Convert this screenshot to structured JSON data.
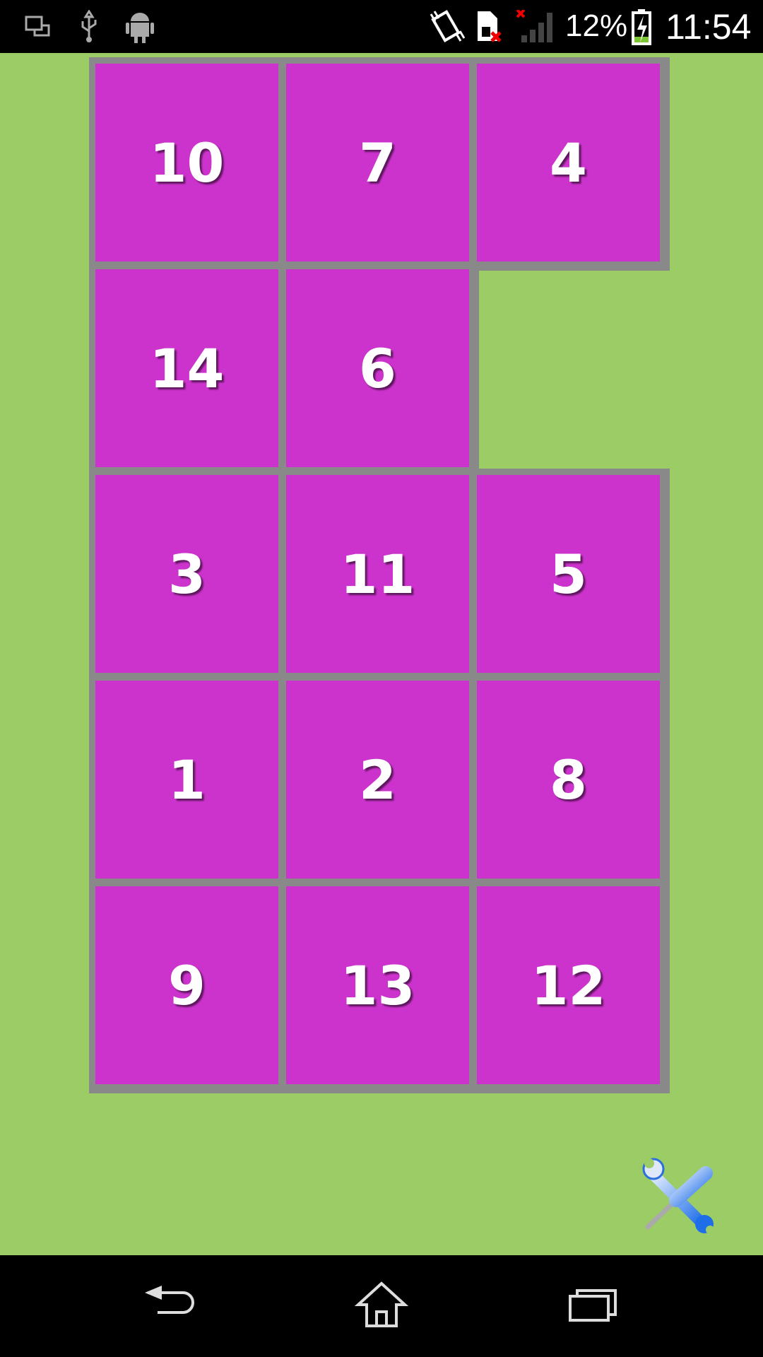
{
  "status_bar": {
    "left_icons": [
      "screen-mirror-icon",
      "usb-icon",
      "android-icon"
    ],
    "right_icons": [
      "vibrate-icon",
      "sim-missing-icon",
      "signal-none-icon",
      "battery-charging-icon"
    ],
    "battery_percent": "12%",
    "battery_level": 0.12,
    "time": "11:54"
  },
  "board": {
    "columns": 3,
    "rows": 5,
    "tiles": [
      {
        "row": 0,
        "col": 0,
        "value": "10"
      },
      {
        "row": 0,
        "col": 1,
        "value": "7"
      },
      {
        "row": 0,
        "col": 2,
        "value": "4"
      },
      {
        "row": 1,
        "col": 0,
        "value": "14"
      },
      {
        "row": 1,
        "col": 1,
        "value": "6"
      },
      {
        "row": 2,
        "col": 0,
        "value": "3"
      },
      {
        "row": 2,
        "col": 1,
        "value": "11"
      },
      {
        "row": 2,
        "col": 2,
        "value": "5"
      },
      {
        "row": 3,
        "col": 0,
        "value": "1"
      },
      {
        "row": 3,
        "col": 1,
        "value": "2"
      },
      {
        "row": 3,
        "col": 2,
        "value": "8"
      },
      {
        "row": 4,
        "col": 0,
        "value": "9"
      },
      {
        "row": 4,
        "col": 1,
        "value": "13"
      },
      {
        "row": 4,
        "col": 2,
        "value": "12"
      }
    ],
    "empty_slot": {
      "row": 1,
      "col": 2
    }
  },
  "settings_icon": "tools-icon",
  "nav_bar": {
    "buttons": [
      "back-icon",
      "home-icon",
      "recents-icon"
    ]
  },
  "colors": {
    "background": "#9ccc66",
    "tile": "#cc33cc",
    "grid": "#898989",
    "tile_text": "#ffffff"
  }
}
